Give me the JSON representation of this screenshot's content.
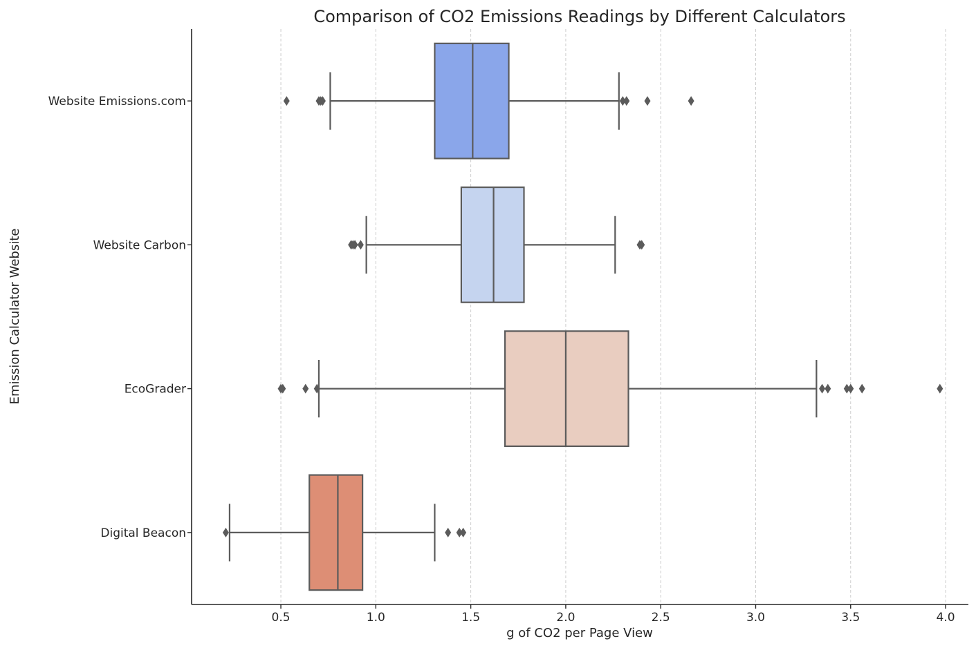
{
  "chart_data": {
    "type": "boxplot",
    "orientation": "horizontal",
    "title": "Comparison of CO2 Emissions Readings by Different Calculators",
    "xlabel": "g of CO2 per Page View",
    "ylabel": "Emission Calculator Website",
    "xlim": [
      0.03,
      4.12
    ],
    "xticks": [
      0.5,
      1.0,
      1.5,
      2.0,
      2.5,
      3.0,
      3.5,
      4.0
    ],
    "xtick_labels": [
      "0.5",
      "1.0",
      "1.5",
      "2.0",
      "2.5",
      "3.0",
      "3.5",
      "4.0"
    ],
    "grid": {
      "x": true,
      "y": false,
      "style": "dashed"
    },
    "categories": [
      "Website Emissions.com",
      "Website Carbon",
      "EcoGrader",
      "Digital Beacon"
    ],
    "series": [
      {
        "category": "Website Emissions.com",
        "color": "#8aa6ea",
        "whisker_low": 0.76,
        "q1": 1.31,
        "median": 1.51,
        "q3": 1.7,
        "whisker_high": 2.28,
        "outliers": [
          0.53,
          0.7,
          0.71,
          0.72,
          2.3,
          2.32,
          2.43,
          2.66
        ]
      },
      {
        "category": "Website Carbon",
        "color": "#c5d4ef",
        "whisker_low": 0.95,
        "q1": 1.45,
        "median": 1.62,
        "q3": 1.78,
        "whisker_high": 2.26,
        "outliers": [
          0.87,
          0.88,
          0.89,
          0.92,
          2.39,
          2.4
        ]
      },
      {
        "category": "EcoGrader",
        "color": "#e9cdc0",
        "whisker_low": 0.7,
        "q1": 1.68,
        "median": 2.0,
        "q3": 2.33,
        "whisker_high": 3.32,
        "outliers": [
          0.5,
          0.51,
          0.63,
          0.69,
          3.35,
          3.38,
          3.48,
          3.5,
          3.56,
          3.97
        ]
      },
      {
        "category": "Digital Beacon",
        "color": "#dd8e75",
        "whisker_low": 0.23,
        "q1": 0.65,
        "median": 0.8,
        "q3": 0.93,
        "whisker_high": 1.31,
        "outliers": [
          0.21,
          1.38,
          1.44,
          1.46
        ]
      }
    ]
  }
}
